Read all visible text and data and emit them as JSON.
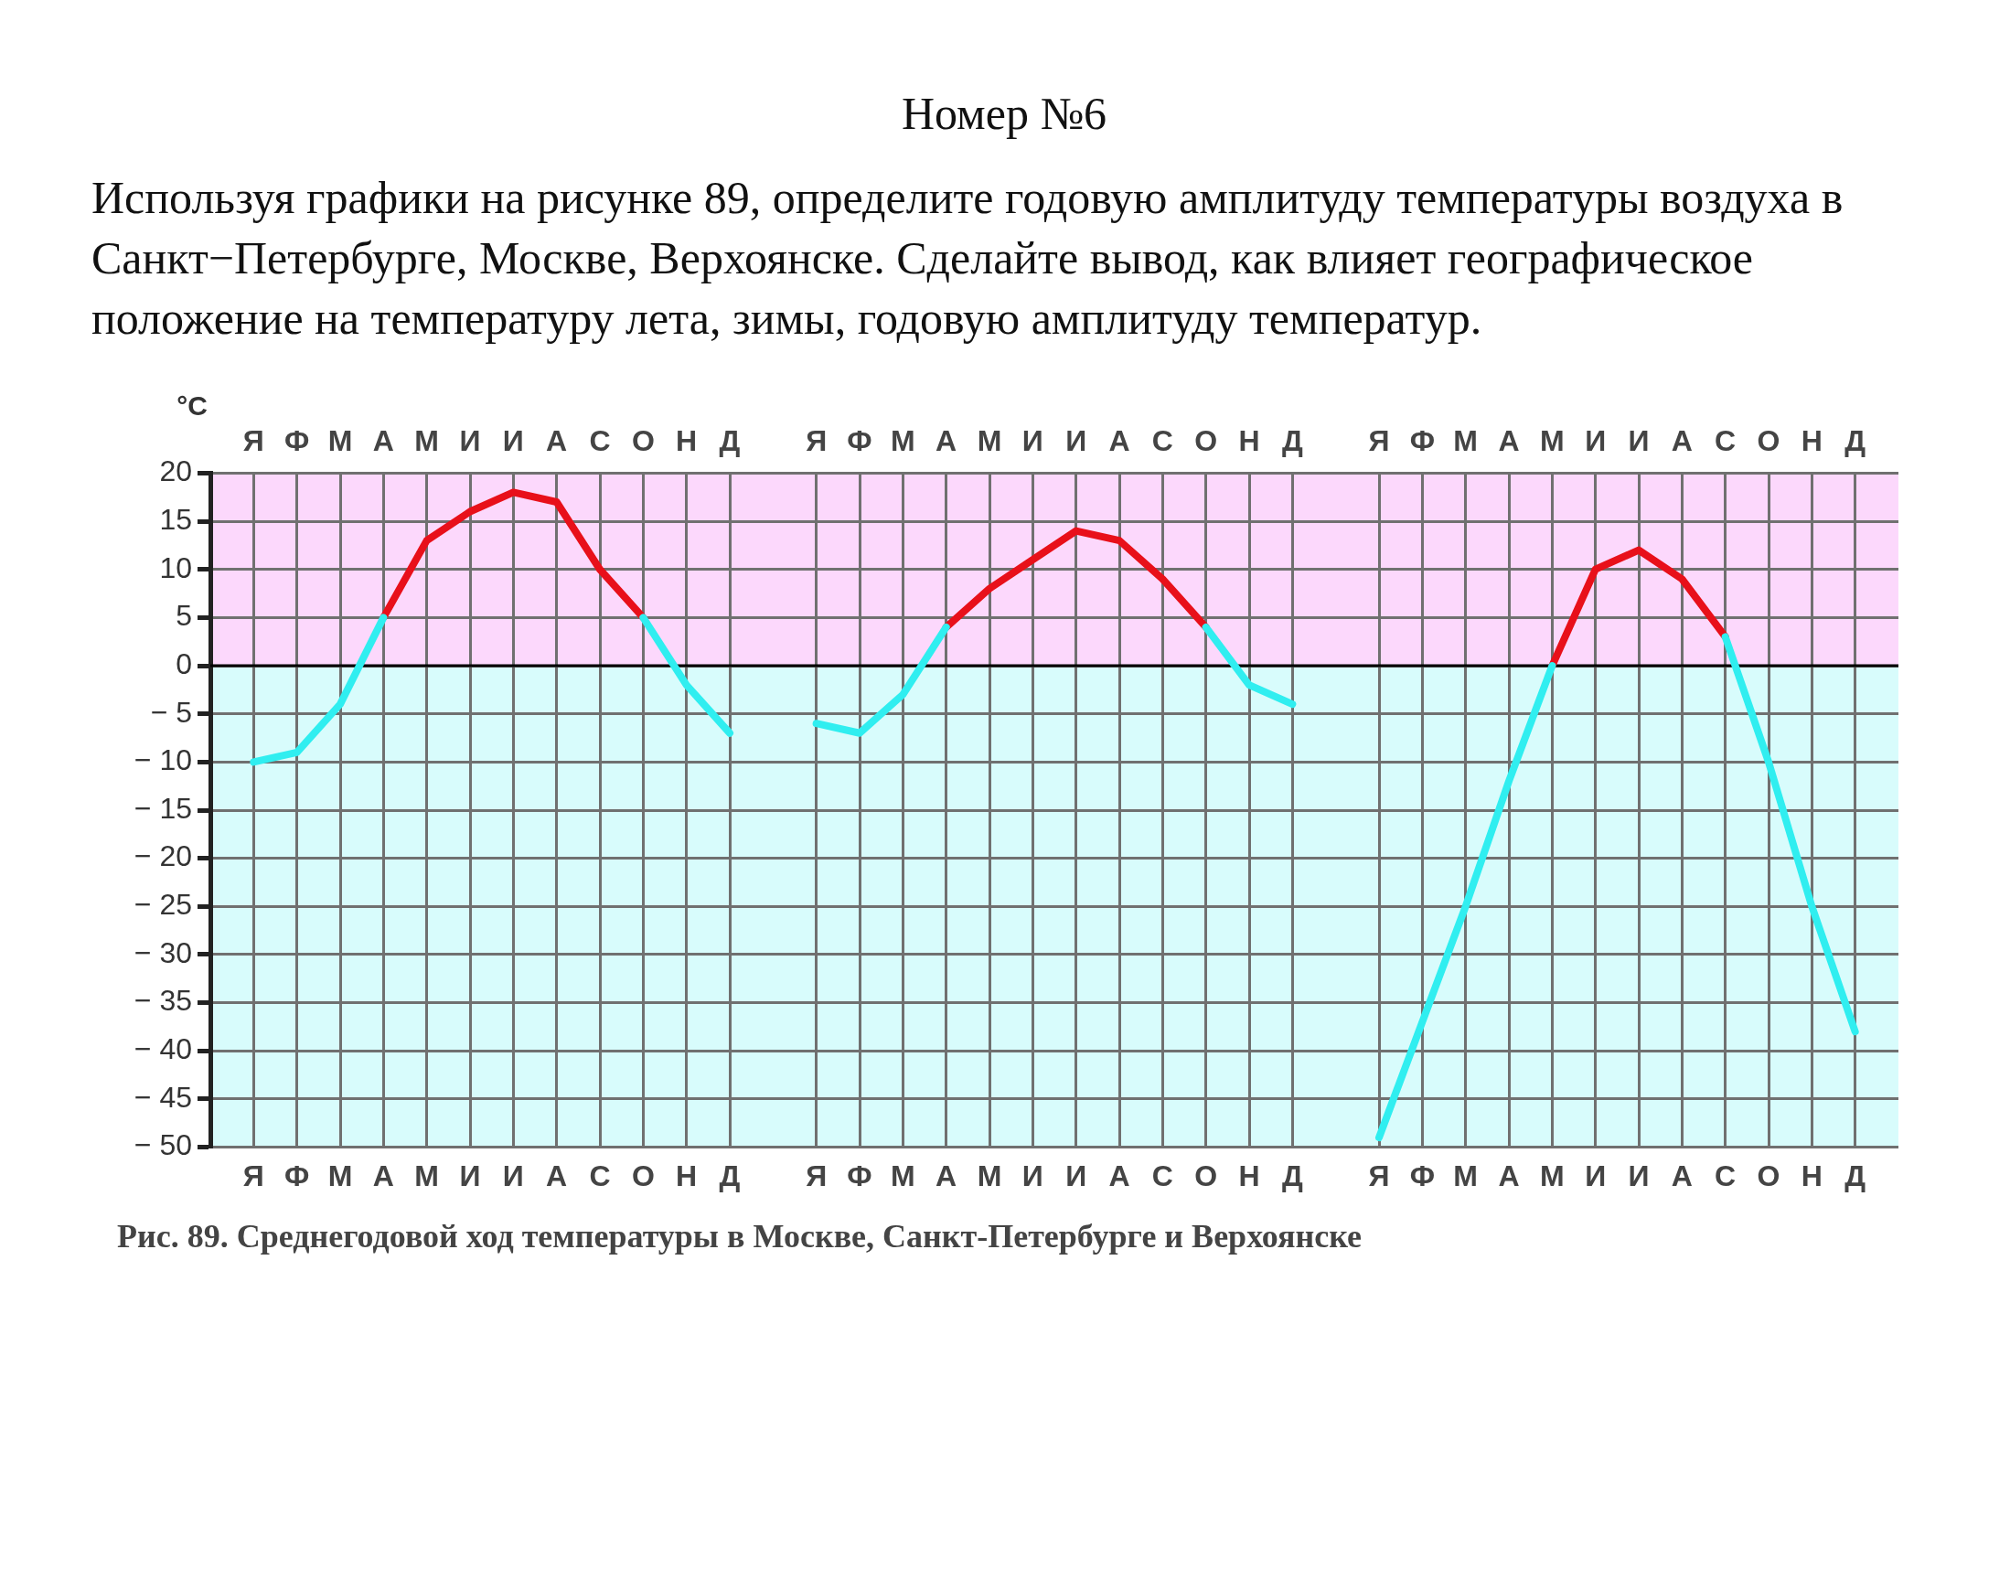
{
  "chart_data": {
    "type": "line",
    "title": "Номер №6",
    "subtitle": "Используя графики на рисунке 89, определите годовую амплитуду температуры воздуха в Санкт−Петербурге, Москве, Верхоянске. Сделайте вывод, как влияет географическое положение на температуру лета, зимы, годовую амплитуду температур.",
    "ylabel": "°C",
    "annotations": [
      "Рис. 89. Среднегодовой ход температуры в Москве, Санкт-Петербурге и Верхоянске"
    ],
    "categories": [
      null,
      "Я",
      "Ф",
      "М",
      "А",
      "М",
      "И",
      "И",
      "А",
      "С",
      "О",
      "Н",
      "Д",
      null,
      "Я",
      "Ф",
      "М",
      "А",
      "М",
      "И",
      "И",
      "А",
      "С",
      "О",
      "Н",
      "Д",
      null,
      "Я",
      "Ф",
      "М",
      "А",
      "М",
      "И",
      "И",
      "А",
      "С",
      "О",
      "Н",
      "Д",
      null
    ],
    "series": [
      {
        "color": "#30eef0",
        "values": [
          null,
          -10,
          -9,
          -4,
          5,
          null,
          null,
          null,
          null,
          null,
          5,
          -2,
          -7,
          null,
          null,
          null,
          null,
          null,
          null,
          null,
          null,
          null,
          null,
          null,
          null,
          null,
          null,
          null,
          null,
          null,
          null,
          null,
          null,
          null,
          null,
          null,
          null,
          null,
          null,
          null
        ]
      },
      {
        "color": "#e8101a",
        "values": [
          null,
          null,
          null,
          null,
          5,
          13,
          16,
          18,
          17,
          10,
          5,
          null,
          null,
          null,
          null,
          null,
          null,
          null,
          null,
          null,
          null,
          null,
          null,
          null,
          null,
          null,
          null,
          null,
          null,
          null,
          null,
          null,
          null,
          null,
          null,
          null,
          null,
          null,
          null,
          null
        ]
      },
      {
        "color": "#30eef0",
        "values": [
          null,
          null,
          null,
          null,
          null,
          null,
          null,
          null,
          null,
          null,
          null,
          null,
          null,
          null,
          -6,
          -7,
          -3,
          4,
          null,
          null,
          null,
          null,
          null,
          4,
          -2,
          -4,
          null,
          null,
          null,
          null,
          null,
          null,
          null,
          null,
          null,
          null,
          null,
          null,
          null,
          null
        ]
      },
      {
        "color": "#e8101a",
        "values": [
          null,
          null,
          null,
          null,
          null,
          null,
          null,
          null,
          null,
          null,
          null,
          null,
          null,
          null,
          null,
          null,
          null,
          4,
          8,
          11,
          14,
          13,
          9,
          4,
          null,
          null,
          null,
          null,
          null,
          null,
          null,
          null,
          null,
          null,
          null,
          null,
          null,
          null,
          null,
          null
        ]
      },
      {
        "color": "#30eef0",
        "values": [
          null,
          null,
          null,
          null,
          null,
          null,
          null,
          null,
          null,
          null,
          null,
          null,
          null,
          null,
          null,
          null,
          null,
          null,
          null,
          null,
          null,
          null,
          null,
          null,
          null,
          null,
          null,
          -49,
          -37,
          -25,
          -12,
          0,
          null,
          null,
          null,
          3,
          -10,
          -25,
          -38,
          null
        ]
      },
      {
        "color": "#e8101a",
        "values": [
          null,
          null,
          null,
          null,
          null,
          null,
          null,
          null,
          null,
          null,
          null,
          null,
          null,
          null,
          null,
          null,
          null,
          null,
          null,
          null,
          null,
          null,
          null,
          null,
          null,
          null,
          null,
          null,
          null,
          null,
          null,
          0,
          10,
          12,
          9,
          3,
          null,
          null,
          null,
          null
        ]
      }
    ],
    "ylim": [
      -50,
      20
    ],
    "yticks": [
      -50,
      -45,
      -40,
      -35,
      -30,
      -25,
      -20,
      -15,
      -10,
      -5,
      0,
      5,
      10,
      15,
      20
    ],
    "grid": true,
    "marker": "none",
    "line_style": "solid",
    "ref_lines": [
      {
        "axis": "y",
        "value": 0,
        "color": "#000000"
      }
    ],
    "bands": [
      {
        "axis": "y",
        "from": 0,
        "to": 20,
        "color": "#fcd8fc"
      },
      {
        "axis": "y",
        "from": -50,
        "to": 0,
        "color": "#d8fcfc"
      }
    ]
  }
}
